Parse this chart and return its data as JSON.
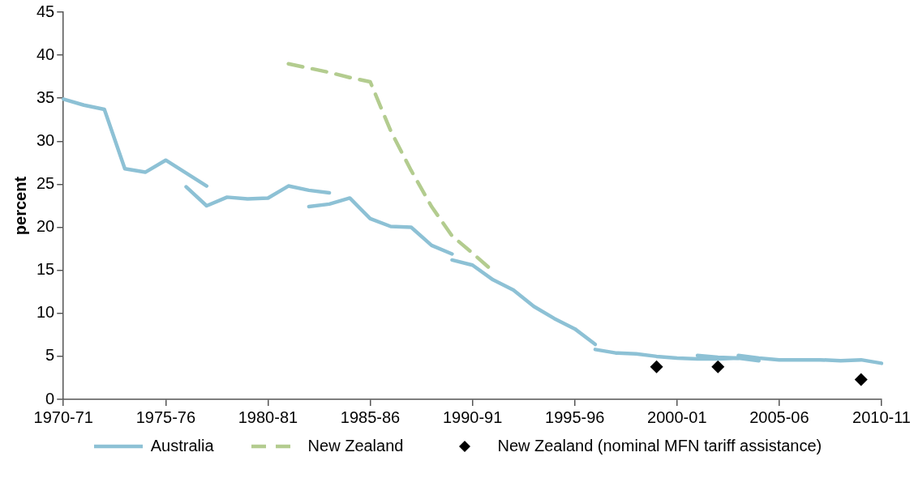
{
  "chart_data": {
    "type": "line",
    "ylabel": "percent",
    "categories": [
      "1970-71",
      null,
      null,
      null,
      null,
      "1975-76",
      null,
      null,
      null,
      null,
      "1980-81",
      null,
      null,
      null,
      null,
      "1985-86",
      null,
      null,
      null,
      null,
      "1990-91",
      null,
      null,
      null,
      null,
      "1995-96",
      null,
      null,
      null,
      null,
      "2000-01",
      null,
      null,
      null,
      null,
      "2005-06",
      null,
      null,
      null,
      null,
      "2010-11"
    ],
    "ylim": [
      0,
      45
    ],
    "yticks": [
      0,
      5,
      10,
      15,
      20,
      25,
      30,
      35,
      40,
      45
    ],
    "grid": false,
    "legend": "bottom",
    "series": [
      {
        "name": "Australia",
        "color": "#8dc1d5",
        "line_style": "solid",
        "marker": "none",
        "values": [
          34.9,
          34.2,
          33.7,
          26.8,
          26.4,
          27.8,
          26.3,
          24.8,
          null,
          null,
          null,
          null,
          null,
          null,
          null,
          null,
          null,
          null,
          null,
          null,
          null,
          null,
          null,
          null,
          null,
          null,
          null,
          null,
          null,
          null,
          null,
          null,
          null,
          null,
          null,
          null,
          null,
          null,
          null,
          null,
          null
        ]
      },
      {
        "color": "#8dc1d5",
        "line_style": "solid",
        "marker": "none",
        "values": [
          null,
          null,
          null,
          null,
          null,
          null,
          24.7,
          22.5,
          23.5,
          23.3,
          23.4,
          24.8,
          24.3,
          24.0,
          null,
          null,
          null,
          null,
          null,
          null,
          null,
          null,
          null,
          null,
          null,
          null,
          null,
          null,
          null,
          null,
          null,
          null,
          null,
          null,
          null,
          null,
          null,
          null,
          null,
          null,
          null
        ]
      },
      {
        "color": "#8dc1d5",
        "line_style": "solid",
        "marker": "none",
        "values": [
          null,
          null,
          null,
          null,
          null,
          null,
          null,
          null,
          null,
          null,
          null,
          null,
          22.4,
          22.7,
          23.4,
          21.0,
          20.1,
          20.0,
          17.9,
          16.9,
          null,
          null,
          null,
          null,
          null,
          null,
          null,
          null,
          null,
          null,
          null,
          null,
          null,
          null,
          null,
          null,
          null,
          null,
          null,
          null,
          null
        ]
      },
      {
        "color": "#8dc1d5",
        "line_style": "solid",
        "marker": "none",
        "values": [
          null,
          null,
          null,
          null,
          null,
          null,
          null,
          null,
          null,
          null,
          null,
          null,
          null,
          null,
          null,
          null,
          null,
          null,
          null,
          16.2,
          15.6,
          13.9,
          12.7,
          10.8,
          9.4,
          8.2,
          6.4,
          null,
          null,
          null,
          null,
          null,
          null,
          null,
          null,
          null,
          null,
          null,
          null,
          null,
          null
        ]
      },
      {
        "color": "#8dc1d5",
        "line_style": "solid",
        "marker": "none",
        "values": [
          null,
          null,
          null,
          null,
          null,
          null,
          null,
          null,
          null,
          null,
          null,
          null,
          null,
          null,
          null,
          null,
          null,
          null,
          null,
          null,
          null,
          null,
          null,
          null,
          null,
          null,
          5.8,
          5.4,
          5.3,
          5.0,
          4.8,
          4.7,
          4.7,
          4.8,
          4.5,
          null,
          null,
          null,
          null,
          null,
          null
        ]
      },
      {
        "color": "#8dc1d5",
        "line_style": "solid",
        "marker": "none",
        "values": [
          null,
          null,
          null,
          null,
          null,
          null,
          null,
          null,
          null,
          null,
          null,
          null,
          null,
          null,
          null,
          null,
          null,
          null,
          null,
          null,
          null,
          null,
          null,
          null,
          null,
          null,
          null,
          null,
          null,
          null,
          null,
          5.1,
          4.9,
          4.8,
          null,
          null,
          null,
          null,
          null,
          null,
          null
        ]
      },
      {
        "color": "#8dc1d5",
        "line_style": "solid",
        "marker": "none",
        "values": [
          null,
          null,
          null,
          null,
          null,
          null,
          null,
          null,
          null,
          null,
          null,
          null,
          null,
          null,
          null,
          null,
          null,
          null,
          null,
          null,
          null,
          null,
          null,
          null,
          null,
          null,
          null,
          null,
          null,
          null,
          null,
          null,
          null,
          5.1,
          4.8,
          4.6,
          4.6,
          4.6,
          4.5,
          4.6,
          4.2
        ]
      },
      {
        "name": "New Zealand",
        "color": "#b3cc8f",
        "line_style": "dashed",
        "marker": "none",
        "values": [
          null,
          null,
          null,
          null,
          null,
          null,
          null,
          null,
          null,
          null,
          null,
          39.0,
          38.5,
          38.0,
          37.4,
          36.9,
          31.2,
          26.6,
          22.4,
          19.0,
          17.0,
          14.9,
          null,
          null,
          null,
          null,
          null,
          null,
          null,
          null,
          null,
          null,
          null,
          null,
          null,
          null,
          null,
          null,
          null,
          null,
          null
        ]
      },
      {
        "name": "New Zealand (nominal MFN tariff assistance)",
        "type": "scatter",
        "color": "#000000",
        "marker": "diamond",
        "values": [
          null,
          null,
          null,
          null,
          null,
          null,
          null,
          null,
          null,
          null,
          null,
          null,
          null,
          null,
          null,
          null,
          null,
          null,
          null,
          null,
          null,
          null,
          null,
          null,
          null,
          null,
          null,
          null,
          null,
          3.8,
          null,
          null,
          3.8,
          null,
          null,
          null,
          null,
          null,
          null,
          2.3,
          null
        ]
      }
    ]
  }
}
